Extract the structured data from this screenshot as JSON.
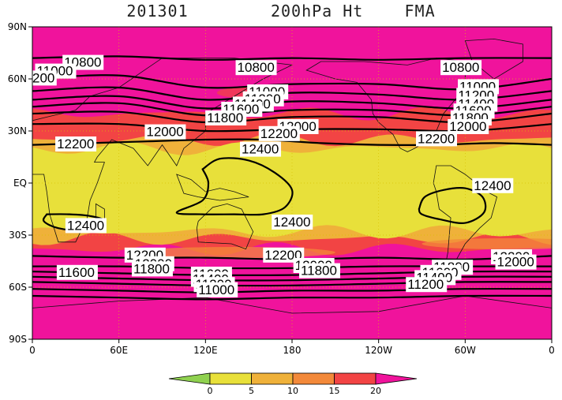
{
  "header": {
    "date": "201301",
    "field": "200hPa Ht",
    "season": "FMA"
  },
  "chart_data": {
    "type": "heatmap",
    "title_parts": [
      "201301",
      "200hPa Ht",
      "FMA"
    ],
    "x_ticks": [
      "0",
      "60E",
      "120E",
      "180",
      "120W",
      "60W",
      "0"
    ],
    "y_ticks": [
      "90N",
      "60N",
      "30N",
      "EQ",
      "30S",
      "60S",
      "90S"
    ],
    "xlim": [
      0,
      360
    ],
    "ylim": [
      -90,
      90
    ],
    "grid": true,
    "colorbar": {
      "levels": [
        0,
        5,
        10,
        15,
        20
      ],
      "tick_labels": [
        "0",
        "5",
        "10",
        "15",
        "20"
      ],
      "colors": [
        "#8fd14f",
        "#e8e03a",
        "#efb13a",
        "#f3893a",
        "#f24444",
        "#f0139c"
      ],
      "extend": "both"
    },
    "contour_labels": [
      {
        "text": "10800",
        "lon": 22,
        "lat": 67
      },
      {
        "text": "11000",
        "lon": 3,
        "lat": 62
      },
      {
        "text": "200",
        "lon": 0,
        "lat": 58
      },
      {
        "text": "10800",
        "lon": 142,
        "lat": 64
      },
      {
        "text": "11000",
        "lon": 150,
        "lat": 50
      },
      {
        "text": "11200",
        "lon": 147,
        "lat": 46
      },
      {
        "text": "11400",
        "lon": 140,
        "lat": 43
      },
      {
        "text": "11600",
        "lon": 132,
        "lat": 40
      },
      {
        "text": "11800",
        "lon": 121,
        "lat": 35
      },
      {
        "text": "12000",
        "lon": 79,
        "lat": 27
      },
      {
        "text": "12000",
        "lon": 171,
        "lat": 30
      },
      {
        "text": "12200",
        "lon": 158,
        "lat": 26
      },
      {
        "text": "12200",
        "lon": 17,
        "lat": 20
      },
      {
        "text": "12400",
        "lon": 145,
        "lat": 17
      },
      {
        "text": "10800",
        "lon": 284,
        "lat": 64
      },
      {
        "text": "11000",
        "lon": 296,
        "lat": 53
      },
      {
        "text": "11200",
        "lon": 295,
        "lat": 48
      },
      {
        "text": "11400",
        "lon": 295,
        "lat": 43
      },
      {
        "text": "11600",
        "lon": 293,
        "lat": 39
      },
      {
        "text": "11800",
        "lon": 291,
        "lat": 35
      },
      {
        "text": "12000",
        "lon": 289,
        "lat": 30
      },
      {
        "text": "12200",
        "lon": 267,
        "lat": 23
      },
      {
        "text": "12400",
        "lon": 306,
        "lat": -4
      },
      {
        "text": "12400",
        "lon": 24,
        "lat": -27
      },
      {
        "text": "12400",
        "lon": 167,
        "lat": -25
      },
      {
        "text": "12200",
        "lon": 65,
        "lat": -44
      },
      {
        "text": "12000",
        "lon": 71,
        "lat": -49
      },
      {
        "text": "11800",
        "lon": 70,
        "lat": -52
      },
      {
        "text": "11600",
        "lon": 18,
        "lat": -54
      },
      {
        "text": "12200",
        "lon": 161,
        "lat": -44
      },
      {
        "text": "12000",
        "lon": 182,
        "lat": -50
      },
      {
        "text": "11800",
        "lon": 186,
        "lat": -53
      },
      {
        "text": "11600",
        "lon": 111,
        "lat": -55
      },
      {
        "text": "11400",
        "lon": 111,
        "lat": -58
      },
      {
        "text": "11200",
        "lon": 113,
        "lat": -61
      },
      {
        "text": "11000",
        "lon": 115,
        "lat": -64
      },
      {
        "text": "12200",
        "lon": 319,
        "lat": -45
      },
      {
        "text": "12000",
        "lon": 322,
        "lat": -48
      },
      {
        "text": "11800",
        "lon": 278,
        "lat": -51
      },
      {
        "text": "11600",
        "lon": 270,
        "lat": -54
      },
      {
        "text": "11400",
        "lon": 266,
        "lat": -57
      },
      {
        "text": "11200",
        "lon": 260,
        "lat": -61
      }
    ],
    "contours": [
      {
        "level": 10800,
        "points": [
          [
            0,
            72
          ],
          [
            60,
            73
          ],
          [
            120,
            71
          ],
          [
            180,
            72
          ],
          [
            240,
            71
          ],
          [
            300,
            72
          ],
          [
            360,
            72
          ]
        ]
      },
      {
        "level": 11000,
        "points": [
          [
            0,
            60
          ],
          [
            60,
            62
          ],
          [
            120,
            55
          ],
          [
            180,
            57
          ],
          [
            240,
            57
          ],
          [
            300,
            54
          ],
          [
            360,
            60
          ]
        ]
      },
      {
        "level": 11200,
        "points": [
          [
            0,
            53
          ],
          [
            60,
            55
          ],
          [
            120,
            48
          ],
          [
            180,
            52
          ],
          [
            240,
            51
          ],
          [
            300,
            48
          ],
          [
            360,
            53
          ]
        ]
      },
      {
        "level": 11400,
        "points": [
          [
            0,
            48
          ],
          [
            60,
            50
          ],
          [
            120,
            43
          ],
          [
            180,
            47
          ],
          [
            240,
            46
          ],
          [
            300,
            43
          ],
          [
            360,
            48
          ]
        ]
      },
      {
        "level": 11600,
        "points": [
          [
            0,
            44
          ],
          [
            60,
            46
          ],
          [
            120,
            39
          ],
          [
            180,
            42
          ],
          [
            240,
            42
          ],
          [
            300,
            39
          ],
          [
            360,
            44
          ]
        ]
      },
      {
        "level": 11800,
        "points": [
          [
            0,
            40
          ],
          [
            60,
            41
          ],
          [
            120,
            35
          ],
          [
            180,
            38
          ],
          [
            240,
            38
          ],
          [
            300,
            35
          ],
          [
            360,
            40
          ]
        ]
      },
      {
        "level": 12000,
        "points": [
          [
            0,
            34
          ],
          [
            60,
            34
          ],
          [
            120,
            30
          ],
          [
            180,
            31
          ],
          [
            240,
            31
          ],
          [
            300,
            30
          ],
          [
            360,
            34
          ]
        ]
      },
      {
        "level": 12200,
        "points": [
          [
            0,
            22
          ],
          [
            40,
            23
          ],
          [
            80,
            24
          ],
          [
            120,
            25
          ],
          [
            160,
            25
          ],
          [
            200,
            23
          ],
          [
            240,
            22
          ],
          [
            280,
            22
          ],
          [
            320,
            23
          ],
          [
            360,
            22
          ]
        ]
      },
      {
        "level": 12200,
        "points": [
          [
            0,
            -42
          ],
          [
            60,
            -43
          ],
          [
            120,
            -43
          ],
          [
            180,
            -44
          ],
          [
            240,
            -43
          ],
          [
            300,
            -44
          ],
          [
            360,
            -42
          ]
        ]
      },
      {
        "level": 12000,
        "points": [
          [
            0,
            -48
          ],
          [
            60,
            -48
          ],
          [
            120,
            -49
          ],
          [
            180,
            -49
          ],
          [
            240,
            -48
          ],
          [
            300,
            -48
          ],
          [
            360,
            -48
          ]
        ]
      },
      {
        "level": 11800,
        "points": [
          [
            0,
            -51
          ],
          [
            60,
            -52
          ],
          [
            120,
            -53
          ],
          [
            180,
            -53
          ],
          [
            240,
            -52
          ],
          [
            300,
            -51
          ],
          [
            360,
            -51
          ]
        ]
      },
      {
        "level": 11600,
        "points": [
          [
            0,
            -54
          ],
          [
            60,
            -55
          ],
          [
            120,
            -56
          ],
          [
            180,
            -56
          ],
          [
            240,
            -55
          ],
          [
            300,
            -54
          ],
          [
            360,
            -54
          ]
        ]
      },
      {
        "level": 11400,
        "points": [
          [
            0,
            -57
          ],
          [
            60,
            -58
          ],
          [
            120,
            -59
          ],
          [
            180,
            -59
          ],
          [
            240,
            -58
          ],
          [
            300,
            -57
          ],
          [
            360,
            -57
          ]
        ]
      },
      {
        "level": 11200,
        "points": [
          [
            0,
            -61
          ],
          [
            60,
            -62
          ],
          [
            120,
            -63
          ],
          [
            180,
            -62
          ],
          [
            240,
            -62
          ],
          [
            300,
            -61
          ],
          [
            360,
            -61
          ]
        ]
      },
      {
        "level": 11000,
        "points": [
          [
            0,
            -65
          ],
          [
            60,
            -66
          ],
          [
            120,
            -67
          ],
          [
            180,
            -66
          ],
          [
            240,
            -66
          ],
          [
            300,
            -65
          ],
          [
            360,
            -65
          ]
        ]
      },
      {
        "level": 12400,
        "points": [
          [
            118,
            8
          ],
          [
            130,
            14
          ],
          [
            150,
            13
          ],
          [
            168,
            6
          ],
          [
            180,
            -4
          ],
          [
            175,
            -14
          ],
          [
            160,
            -18
          ],
          [
            140,
            -18
          ],
          [
            118,
            -18
          ],
          [
            100,
            -17
          ],
          [
            118,
            -10
          ],
          [
            122,
            0
          ],
          [
            118,
            8
          ]
        ]
      },
      {
        "level": 12400,
        "points": [
          [
            268,
            -15
          ],
          [
            272,
            -8
          ],
          [
            285,
            -4
          ],
          [
            300,
            -3
          ],
          [
            312,
            -8
          ],
          [
            313,
            -17
          ],
          [
            300,
            -23
          ],
          [
            283,
            -21
          ],
          [
            270,
            -18
          ],
          [
            268,
            -15
          ]
        ]
      },
      {
        "level": 12400,
        "points": [
          [
            10,
            -18
          ],
          [
            25,
            -18
          ],
          [
            40,
            -19
          ],
          [
            50,
            -22
          ],
          [
            35,
            -27
          ],
          [
            18,
            -26
          ],
          [
            8,
            -22
          ],
          [
            10,
            -18
          ]
        ]
      }
    ],
    "bands": [
      {
        "value": 20,
        "lat_range": [
          -90,
          90
        ]
      },
      {
        "value": 15,
        "lat_range": [
          -38,
          40
        ]
      },
      {
        "value": 10,
        "lat_range": [
          -32,
          25
        ]
      },
      {
        "value": 5,
        "lat_range": [
          -28,
          20
        ]
      }
    ]
  }
}
